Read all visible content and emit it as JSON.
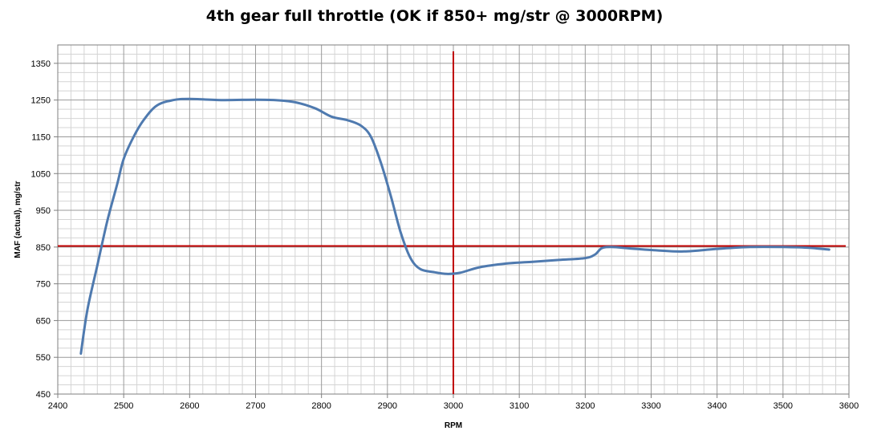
{
  "chart_data": {
    "type": "line",
    "title": "4th gear full throttle (OK if 850+ mg/str @ 3000RPM)",
    "xlabel": "RPM",
    "ylabel": "MAF (actual), mg/str",
    "xlim": [
      2400,
      3600
    ],
    "ylim": [
      450,
      1400
    ],
    "x_ticks": [
      2400,
      2500,
      2600,
      2700,
      2800,
      2900,
      3000,
      3100,
      3200,
      3300,
      3400,
      3500,
      3600
    ],
    "y_ticks": [
      450,
      550,
      650,
      750,
      850,
      950,
      1050,
      1150,
      1250,
      1350
    ],
    "grid": true,
    "legend": "none",
    "series": [
      {
        "color": "#4f7aaf",
        "x": [
          2435,
          2445,
          2460,
          2475,
          2490,
          2500,
          2515,
          2530,
          2550,
          2575,
          2600,
          2650,
          2700,
          2730,
          2760,
          2790,
          2815,
          2840,
          2860,
          2875,
          2890,
          2905,
          2920,
          2935,
          2950,
          2970,
          2990,
          3010,
          3040,
          3080,
          3120,
          3160,
          3200,
          3215,
          3225,
          3240,
          3270,
          3300,
          3350,
          3400,
          3450,
          3500,
          3540,
          3570
        ],
        "y": [
          560,
          680,
          800,
          920,
          1020,
          1090,
          1150,
          1195,
          1235,
          1250,
          1253,
          1250,
          1251,
          1250,
          1244,
          1228,
          1205,
          1195,
          1180,
          1150,
          1080,
          990,
          890,
          820,
          790,
          782,
          777,
          780,
          795,
          805,
          810,
          815,
          820,
          830,
          847,
          850,
          846,
          842,
          838,
          845,
          850,
          850,
          848,
          843
        ]
      }
    ],
    "reference_lines": [
      {
        "axis": "y",
        "value": 853,
        "color": "#c00000"
      },
      {
        "axis": "x",
        "value": 3000,
        "color": "#c00000"
      }
    ]
  }
}
